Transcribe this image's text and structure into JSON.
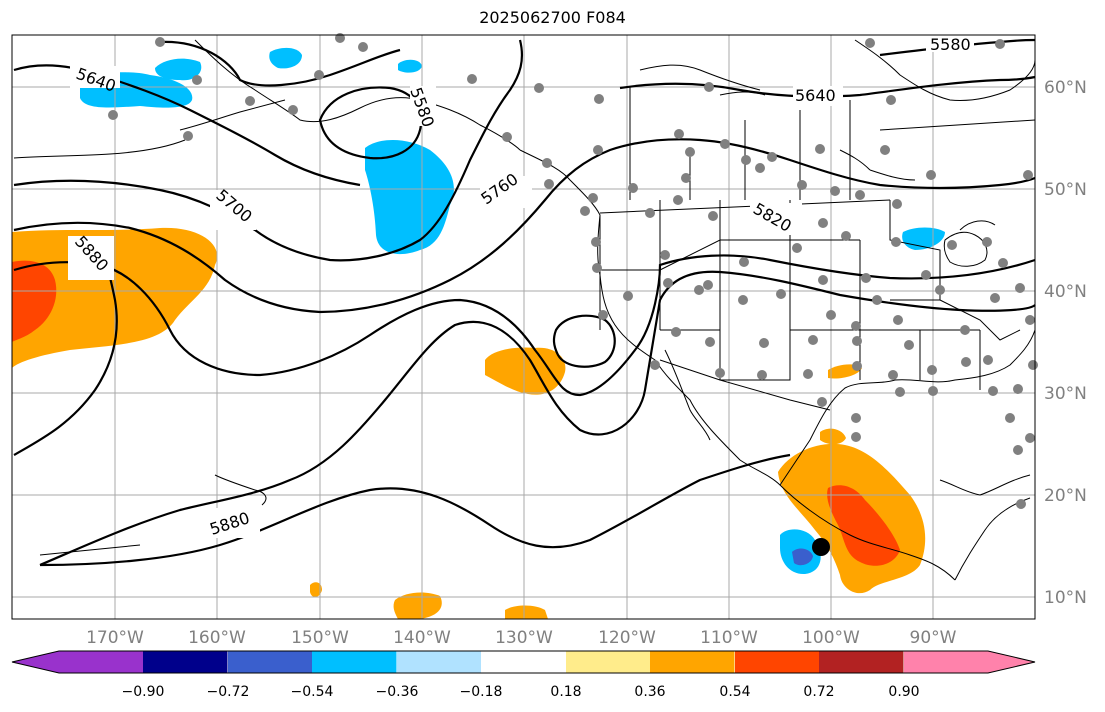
{
  "title": "2025062700 F084",
  "map": {
    "lon_labels": [
      "170°W",
      "160°W",
      "150°W",
      "140°W",
      "130°W",
      "120°W",
      "110°W",
      "100°W",
      "90°W"
    ],
    "lat_labels": [
      "60°N",
      "50°N",
      "40°N",
      "30°N",
      "20°N",
      "10°N"
    ],
    "contour_labels": [
      "5580",
      "5580",
      "5640",
      "5640",
      "5700",
      "5760",
      "5820",
      "5880",
      "5880"
    ]
  },
  "colorbar": {
    "ticks": [
      "−0.90",
      "−0.72",
      "−0.54",
      "−0.36",
      "−0.18",
      "0.18",
      "0.36",
      "0.54",
      "0.72",
      "0.90"
    ],
    "colors": [
      "#9932cc",
      "#00008b",
      "#3a5fcd",
      "#00bfff",
      "#b0e2ff",
      "#ffffff",
      "#ffec8b",
      "#ffa500",
      "#ff4500",
      "#b22222",
      "#ff82ab"
    ]
  }
}
